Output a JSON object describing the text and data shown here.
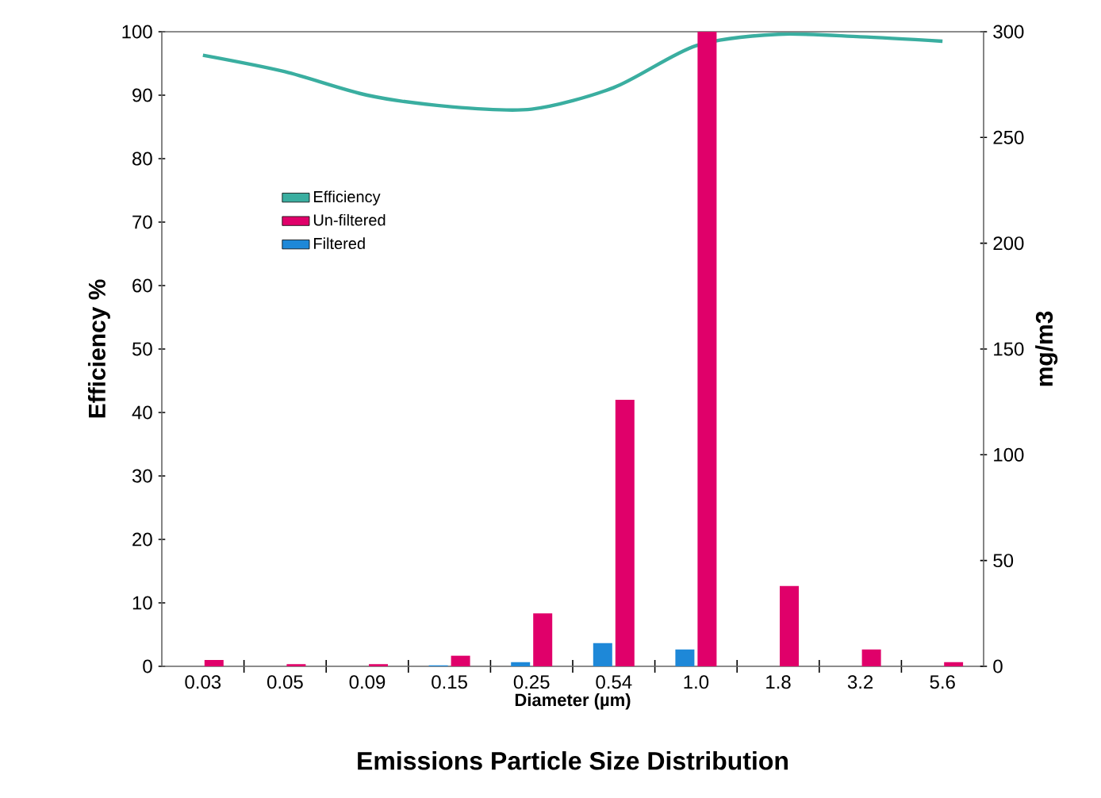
{
  "chart_data": {
    "type": "bar",
    "title": "Emissions Particle Size Distribution",
    "xlabel": "Diameter (µm)",
    "ylabel": "Efficiency %",
    "y2label": "mg/m3",
    "categories": [
      "0.03",
      "0.05",
      "0.09",
      "0.15",
      "0.25",
      "0.54",
      "1.0",
      "1.8",
      "3.2",
      "5.6"
    ],
    "series": [
      {
        "name": "Efficiency",
        "type": "line",
        "color": "#3aaea0",
        "values": [
          96.3,
          93.7,
          90,
          88.2,
          87.8,
          91.2,
          97.8,
          99.6,
          99.2,
          98.5
        ]
      },
      {
        "name": "Un-filtered",
        "axis": "y2",
        "color": "#e0006a",
        "values": [
          3,
          1,
          1,
          5,
          25,
          126,
          300,
          38,
          8,
          2
        ]
      },
      {
        "name": "Filtered",
        "axis": "y2",
        "color": "#1e88d8",
        "values": [
          0,
          0,
          0,
          0.5,
          2,
          11,
          8,
          0,
          0,
          0
        ]
      }
    ],
    "ylim": [
      0,
      100
    ],
    "yticks": [
      0,
      10,
      20,
      30,
      40,
      50,
      60,
      70,
      80,
      90,
      100
    ],
    "y2lim": [
      0,
      300
    ],
    "y2ticks": [
      0,
      50,
      100,
      150,
      200,
      250,
      300
    ],
    "legend": "top left",
    "marker": "none",
    "grid": false
  }
}
